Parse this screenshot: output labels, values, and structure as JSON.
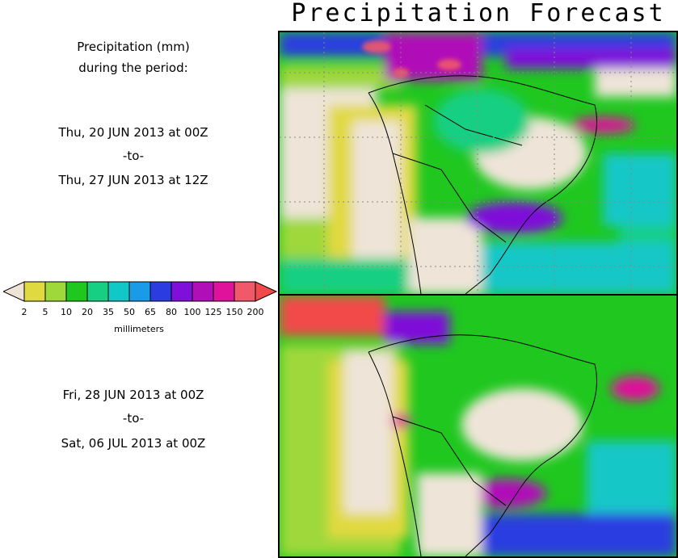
{
  "title": "Precipitation Forecast",
  "legend": {
    "heading_line1": "Precipitation (mm)",
    "heading_line2": "during the period:",
    "unit": "millimeters",
    "ticks": [
      "2",
      "5",
      "10",
      "20",
      "35",
      "50",
      "65",
      "80",
      "100",
      "125",
      "150",
      "200"
    ],
    "colors": [
      "#e1d940",
      "#9ed83a",
      "#1fc71f",
      "#17cf82",
      "#12c7c7",
      "#1a9be8",
      "#2b3de0",
      "#7f10d9",
      "#b00fb8",
      "#e0119b",
      "#f0596a"
    ],
    "low_color": "#efe4d8",
    "high_color": "#f24a4a"
  },
  "period1": {
    "start": "Thu, 20 JUN 2013 at 00Z",
    "sep": "-to-",
    "end": "Thu, 27 JUN 2013 at 12Z"
  },
  "period2": {
    "start": "Fri, 28 JUN 2013 at 00Z",
    "sep": "-to-",
    "end": "Sat, 06 JUL 2013 at 00Z"
  }
}
